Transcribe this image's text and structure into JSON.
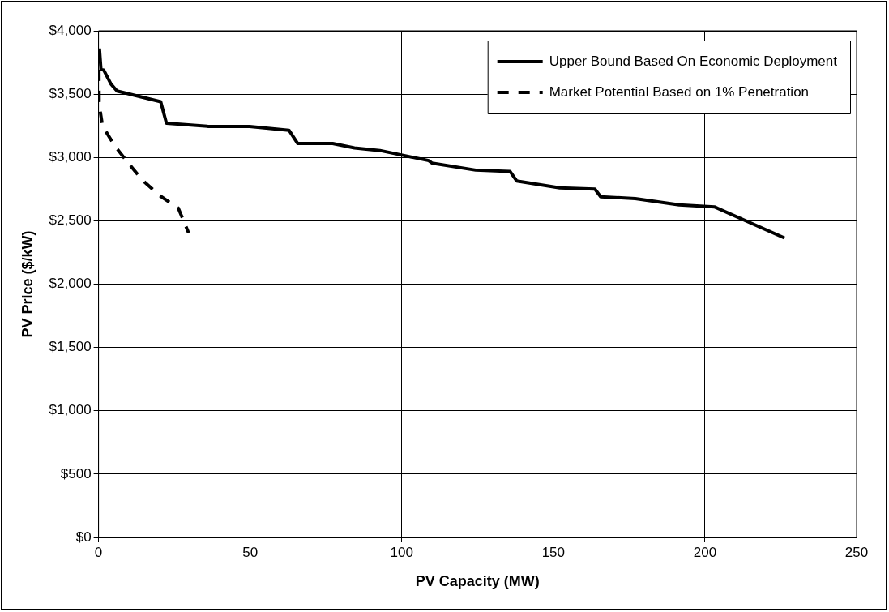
{
  "chart_data": {
    "type": "line",
    "xlabel": "PV Capacity (MW)",
    "ylabel": "PV Price ($/kW)",
    "xlim": [
      0,
      250
    ],
    "xticks": [
      0,
      50,
      100,
      150,
      200,
      250
    ],
    "ylim": [
      0,
      4000
    ],
    "yticks": [
      {
        "value": 0,
        "label": "$0"
      },
      {
        "value": 500,
        "label": "$500"
      },
      {
        "value": 1000,
        "label": "$1,000"
      },
      {
        "value": 1500,
        "label": "$1,500"
      },
      {
        "value": 2000,
        "label": "$2,000"
      },
      {
        "value": 2500,
        "label": "$2,500"
      },
      {
        "value": 3000,
        "label": "$3,000"
      },
      {
        "value": 3500,
        "label": "$3,500"
      },
      {
        "value": 4000,
        "label": "$4,000"
      }
    ],
    "grid": true,
    "legend": "top right",
    "marker": "none",
    "series": [
      {
        "name": "Upper Bound Based On Economic Deployment",
        "color": "#000000",
        "line_style": "solid",
        "x": [
          0.3,
          0.8,
          1.7,
          4.1,
          6.1,
          20.5,
          22.4,
          36.3,
          49.8,
          62.8,
          65.7,
          77.2,
          84.4,
          92.8,
          108.9,
          110,
          124.4,
          135.7,
          137.9,
          152.1,
          163.7,
          165.6,
          177,
          191.5,
          203.1,
          226.2
        ],
        "values": [
          3860,
          3695,
          3690,
          3580,
          3525,
          3440,
          3270,
          3245,
          3245,
          3215,
          3110,
          3110,
          3075,
          3055,
          2975,
          2955,
          2900,
          2890,
          2815,
          2760,
          2750,
          2690,
          2675,
          2625,
          2610,
          2365
        ]
      },
      {
        "name": "Market Potential Based on 1% Penetration",
        "color": "#000000",
        "line_style": "dashed",
        "x": [
          0.1,
          0.2,
          1.3,
          5.1,
          9.5,
          14.3,
          20.1,
          26.3,
          29.7
        ],
        "values": [
          3860,
          3420,
          3250,
          3100,
          2965,
          2825,
          2700,
          2600,
          2405
        ]
      }
    ]
  }
}
